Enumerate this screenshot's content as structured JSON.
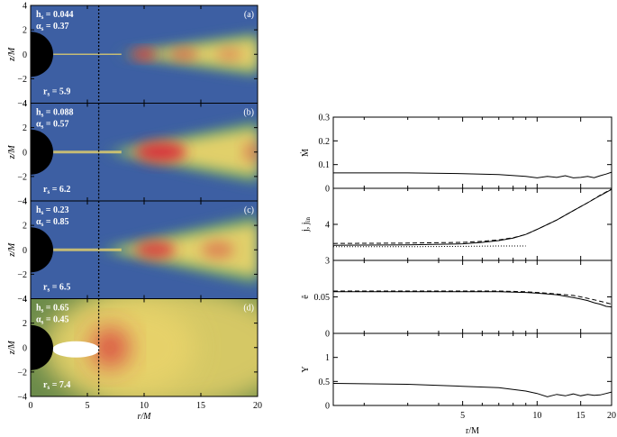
{
  "chart_data": [
    {
      "type": "heatmap",
      "panels": [
        {
          "letter": "(a)",
          "h_label": "h",
          "h_sub": "s",
          "h_value": "= 0.044",
          "a_label": "α",
          "a_sub": "s",
          "a_value": "= 0.37",
          "r_label": "r",
          "r_sub": "s",
          "r_value": "= 5.9",
          "background": "#3d5fa3"
        },
        {
          "letter": "(b)",
          "h_label": "h",
          "h_sub": "s",
          "h_value": "= 0.088",
          "a_label": "α",
          "a_sub": "s",
          "a_value": "= 0.57",
          "r_label": "r",
          "r_sub": "s",
          "r_value": "= 6.2",
          "background": "#3d5fa3"
        },
        {
          "letter": "(c)",
          "h_label": "h",
          "h_sub": "s",
          "h_value": "= 0.23",
          "a_label": "α",
          "a_sub": "s",
          "a_value": "= 0.85",
          "r_label": "r",
          "r_sub": "s",
          "r_value": "= 6.5",
          "background": "#3d5fa3"
        },
        {
          "letter": "(d)",
          "h_label": "h",
          "h_sub": "s",
          "h_value": "= 0.65",
          "a_label": "α",
          "a_sub": "s",
          "a_value": "= 0.45",
          "r_label": "r",
          "r_sub": "s",
          "r_value": "= 7.4",
          "background": "#6a8a4a"
        }
      ],
      "xlabel": "r/M",
      "ylabel": "z/M",
      "xlim": [
        0,
        20
      ],
      "ylim": [
        -4,
        4
      ],
      "xticks": [
        "0",
        "5",
        "10",
        "15",
        "20"
      ],
      "yticks": [
        "4",
        "2",
        "0",
        "−2",
        "−4"
      ],
      "dashed_line_x": 6,
      "colors": {
        "low": "#3d5fa3",
        "mid": "#6aa46a",
        "yellow": "#e8d36a",
        "high": "#d8303a",
        "hole": "#000000"
      }
    },
    {
      "type": "line",
      "xlabel": "r/M",
      "xlim": [
        1.5,
        20
      ],
      "x_ticks": [
        "5",
        "10",
        "15",
        "20"
      ],
      "panels": [
        {
          "ylabel": "Ṁ",
          "ylim": [
            0,
            0.3
          ],
          "yticks": [
            "0",
            "0.1",
            "0.2",
            "0.3"
          ],
          "series": [
            {
              "style": "solid",
              "x": [
                1.5,
                3,
                5,
                7,
                9,
                10,
                11,
                12,
                13,
                14,
                15,
                16,
                17,
                18,
                19,
                20
              ],
              "y": [
                0.065,
                0.065,
                0.062,
                0.058,
                0.05,
                0.044,
                0.05,
                0.046,
                0.053,
                0.044,
                0.046,
                0.05,
                0.045,
                0.053,
                0.06,
                0.068
              ]
            }
          ]
        },
        {
          "ylabel": "j, j",
          "ylabel_sub": "in",
          "ylim": [
            3,
            5
          ],
          "yticks": [
            "3",
            "4"
          ],
          "series": [
            {
              "style": "solid",
              "x": [
                1.5,
                3,
                5,
                6,
                7,
                8,
                9,
                10,
                12,
                14,
                16,
                18,
                20
              ],
              "y": [
                3.42,
                3.43,
                3.46,
                3.5,
                3.55,
                3.62,
                3.72,
                3.86,
                4.12,
                4.38,
                4.6,
                4.8,
                4.97
              ]
            },
            {
              "style": "dashed",
              "x": [
                1.5,
                3,
                5,
                6,
                7,
                8,
                9,
                10,
                12,
                14,
                16,
                18,
                20
              ],
              "y": [
                3.47,
                3.48,
                3.5,
                3.53,
                3.57,
                3.63,
                3.72,
                3.86,
                4.12,
                4.38,
                4.6,
                4.81,
                4.98
              ]
            },
            {
              "style": "dotted",
              "x": [
                1.5,
                3,
                5,
                7,
                9
              ],
              "y": [
                3.38,
                3.38,
                3.39,
                3.4,
                3.4
              ]
            }
          ]
        },
        {
          "ylabel": "ẽ",
          "ylim": [
            0,
            0.1
          ],
          "yticks": [
            "0",
            "0.05"
          ],
          "series": [
            {
              "style": "solid",
              "x": [
                1.5,
                3,
                5,
                7,
                9,
                10,
                11,
                12,
                13,
                14,
                15,
                16,
                17,
                18,
                19,
                20
              ],
              "y": [
                0.057,
                0.057,
                0.057,
                0.057,
                0.056,
                0.055,
                0.054,
                0.053,
                0.051,
                0.049,
                0.047,
                0.045,
                0.042,
                0.04,
                0.037,
                0.036
              ]
            },
            {
              "style": "dashed",
              "x": [
                1.5,
                3,
                5,
                7,
                9,
                10,
                11,
                12,
                13,
                14,
                15,
                16,
                17,
                18,
                19,
                20
              ],
              "y": [
                0.058,
                0.058,
                0.058,
                0.058,
                0.057,
                0.056,
                0.055,
                0.054,
                0.053,
                0.052,
                0.05,
                0.048,
                0.046,
                0.044,
                0.042,
                0.04
              ]
            }
          ]
        },
        {
          "ylabel": "Υ",
          "ylim": [
            0,
            1.5
          ],
          "yticks": [
            "0",
            "0.5",
            "1"
          ],
          "series": [
            {
              "style": "solid",
              "x": [
                1.5,
                3,
                5,
                7,
                9,
                10,
                11,
                12,
                13,
                14,
                15,
                16,
                17,
                18,
                19,
                20
              ],
              "y": [
                0.46,
                0.44,
                0.4,
                0.37,
                0.3,
                0.25,
                0.18,
                0.23,
                0.2,
                0.24,
                0.2,
                0.23,
                0.21,
                0.22,
                0.25,
                0.28
              ]
            }
          ]
        }
      ]
    }
  ]
}
